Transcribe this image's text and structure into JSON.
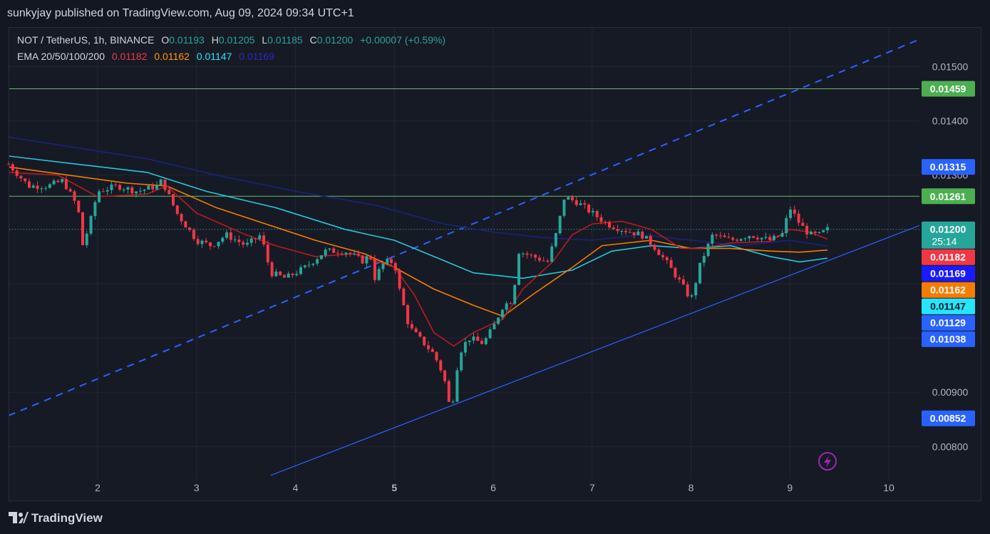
{
  "header": {
    "publisher_line": "sunkyjay published on TradingView.com, Aug 09, 2024 09:34 UTC+1"
  },
  "legend": {
    "symbol": "NOT / TetherUS, 1h, BINANCE",
    "o_label": "O",
    "o_value": "0.01193",
    "h_label": "H",
    "h_value": "0.01205",
    "l_label": "L",
    "l_value": "0.01185",
    "c_label": "C",
    "c_value": "0.01200",
    "change": "+0.00007 (+0.59%)",
    "ema_label": "EMA 20/50/100/200",
    "ema20": "0.01182",
    "ema50": "0.01162",
    "ema100": "0.01147",
    "ema200": "0.01169"
  },
  "footer": {
    "brand": "TradingView"
  },
  "colors": {
    "background": "#161a25",
    "up": "#26a69a",
    "down": "#f23645",
    "ema20": "#b71c1c",
    "ema50": "#f57c00",
    "ema100": "#26c6da",
    "ema200": "#1a237e",
    "hline": "#66bb6a",
    "trendline": "#2962ff",
    "dashed": "#2962ff"
  },
  "chart_data": {
    "type": "candlestick",
    "ylim": [
      0.0074,
      0.0157
    ],
    "xlim": [
      1.1,
      10.45
    ],
    "y_ticks": [
      "0.01500",
      "0.01400",
      "0.01300",
      "0.00900",
      "0.00800"
    ],
    "x_ticks": [
      "2",
      "3",
      "4",
      "5",
      "6",
      "7",
      "8",
      "9",
      "10"
    ],
    "x_tick_values": [
      2,
      3,
      4,
      5,
      6,
      7,
      8,
      9,
      10
    ],
    "horizontal_levels": [
      0.01459,
      0.01261
    ],
    "trendlines": [
      {
        "style": "solid",
        "from": [
          3.75,
          0.00747
        ],
        "to": [
          10.35,
          0.0121
        ]
      },
      {
        "style": "dashed",
        "from": [
          1.1,
          0.00857
        ],
        "to": [
          10.35,
          0.01553
        ]
      }
    ],
    "price_labels": [
      {
        "value": "0.01459",
        "color": "#4caf50",
        "text_color": "#ffffff"
      },
      {
        "value": "0.01315",
        "color": "#2962ff",
        "text_color": "#ffffff"
      },
      {
        "value": "0.01261",
        "color": "#4caf50",
        "text_color": "#ffffff"
      },
      {
        "value": "0.01200",
        "sub": "25:14",
        "color": "#26a69a",
        "text_color": "#ffffff"
      },
      {
        "value": "0.01182",
        "color": "#f23645",
        "text_color": "#ffffff"
      },
      {
        "value": "0.01169",
        "color": "#1a1aff",
        "text_color": "#ffffff"
      },
      {
        "value": "0.01162",
        "color": "#f57c00",
        "text_color": "#ffffff"
      },
      {
        "value": "0.01147",
        "color": "#26e5ff",
        "text_color": "#131722"
      },
      {
        "value": "0.01129",
        "color": "#2962ff",
        "text_color": "#ffffff"
      },
      {
        "value": "0.01038",
        "color": "#2962ff",
        "text_color": "#ffffff"
      },
      {
        "value": "0.00852",
        "color": "#2962ff",
        "text_color": "#ffffff"
      }
    ],
    "close_path": [
      [
        1.1,
        0.0132
      ],
      [
        1.3,
        0.0128
      ],
      [
        1.5,
        0.0128
      ],
      [
        1.65,
        0.0129
      ],
      [
        1.8,
        0.0124
      ],
      [
        1.85,
        0.0117
      ],
      [
        1.92,
        0.0121
      ],
      [
        2.0,
        0.0127
      ],
      [
        2.2,
        0.0128
      ],
      [
        2.4,
        0.0127
      ],
      [
        2.6,
        0.0128
      ],
      [
        2.65,
        0.0129
      ],
      [
        2.8,
        0.0123
      ],
      [
        3.0,
        0.0118
      ],
      [
        3.15,
        0.0117
      ],
      [
        3.3,
        0.0119
      ],
      [
        3.5,
        0.0117
      ],
      [
        3.65,
        0.0119
      ],
      [
        3.75,
        0.0112
      ],
      [
        3.9,
        0.0111
      ],
      [
        4.1,
        0.0113
      ],
      [
        4.3,
        0.0116
      ],
      [
        4.5,
        0.0116
      ],
      [
        4.7,
        0.0114
      ],
      [
        4.75,
        0.0116
      ],
      [
        4.8,
        0.0111
      ],
      [
        4.9,
        0.0114
      ],
      [
        5.0,
        0.0114
      ],
      [
        5.05,
        0.0109
      ],
      [
        5.15,
        0.0102
      ],
      [
        5.3,
        0.0099
      ],
      [
        5.4,
        0.0097
      ],
      [
        5.5,
        0.0093
      ],
      [
        5.55,
        0.0088
      ],
      [
        5.6,
        0.0089
      ],
      [
        5.65,
        0.0097
      ],
      [
        5.75,
        0.01
      ],
      [
        5.9,
        0.0099
      ],
      [
        6.0,
        0.0102
      ],
      [
        6.1,
        0.0106
      ],
      [
        6.2,
        0.0107
      ],
      [
        6.25,
        0.0116
      ],
      [
        6.4,
        0.0115
      ],
      [
        6.55,
        0.0114
      ],
      [
        6.65,
        0.012
      ],
      [
        6.72,
        0.0126
      ],
      [
        6.85,
        0.0125
      ],
      [
        7.0,
        0.0123
      ],
      [
        7.15,
        0.0121
      ],
      [
        7.3,
        0.012
      ],
      [
        7.5,
        0.0119
      ],
      [
        7.62,
        0.0117
      ],
      [
        7.75,
        0.0114
      ],
      [
        7.9,
        0.011
      ],
      [
        8.0,
        0.0107
      ],
      [
        8.1,
        0.0114
      ],
      [
        8.22,
        0.0119
      ],
      [
        8.4,
        0.0118
      ],
      [
        8.6,
        0.0119
      ],
      [
        8.8,
        0.0118
      ],
      [
        8.92,
        0.0119
      ],
      [
        9.0,
        0.0124
      ],
      [
        9.1,
        0.0121
      ],
      [
        9.2,
        0.0119
      ],
      [
        9.3,
        0.0119
      ],
      [
        9.38,
        0.012
      ]
    ],
    "ema_series": [
      {
        "name": "EMA 20",
        "color": "#b71c1c",
        "points": [
          [
            1.1,
            0.01305
          ],
          [
            1.6,
            0.013
          ],
          [
            2.0,
            0.0126
          ],
          [
            2.5,
            0.01265
          ],
          [
            2.7,
            0.0128
          ],
          [
            3.0,
            0.0123
          ],
          [
            3.5,
            0.0119
          ],
          [
            3.8,
            0.0117
          ],
          [
            4.2,
            0.0115
          ],
          [
            4.6,
            0.01155
          ],
          [
            5.0,
            0.0113
          ],
          [
            5.2,
            0.0108
          ],
          [
            5.4,
            0.0101
          ],
          [
            5.6,
            0.00985
          ],
          [
            5.8,
            0.0101
          ],
          [
            6.1,
            0.01035
          ],
          [
            6.3,
            0.0109
          ],
          [
            6.6,
            0.0114
          ],
          [
            6.8,
            0.0119
          ],
          [
            7.0,
            0.0121
          ],
          [
            7.3,
            0.01215
          ],
          [
            7.6,
            0.012
          ],
          [
            7.9,
            0.01165
          ],
          [
            8.1,
            0.01165
          ],
          [
            8.4,
            0.01175
          ],
          [
            8.8,
            0.01178
          ],
          [
            9.0,
            0.012
          ],
          [
            9.2,
            0.01195
          ],
          [
            9.38,
            0.01182
          ]
        ]
      },
      {
        "name": "EMA 50",
        "color": "#f57c00",
        "points": [
          [
            1.1,
            0.01315
          ],
          [
            1.7,
            0.013
          ],
          [
            2.3,
            0.01285
          ],
          [
            2.7,
            0.0128
          ],
          [
            3.2,
            0.0124
          ],
          [
            3.7,
            0.0121
          ],
          [
            4.2,
            0.0118
          ],
          [
            4.7,
            0.01155
          ],
          [
            5.0,
            0.0113
          ],
          [
            5.4,
            0.0109
          ],
          [
            5.8,
            0.0106
          ],
          [
            6.1,
            0.0104
          ],
          [
            6.4,
            0.0108
          ],
          [
            6.8,
            0.0113
          ],
          [
            7.1,
            0.0117
          ],
          [
            7.6,
            0.0118
          ],
          [
            8.0,
            0.01165
          ],
          [
            8.4,
            0.01165
          ],
          [
            8.8,
            0.0116
          ],
          [
            9.1,
            0.01158
          ],
          [
            9.38,
            0.01162
          ]
        ]
      },
      {
        "name": "EMA 100",
        "color": "#26c6da",
        "points": [
          [
            1.1,
            0.01335
          ],
          [
            1.8,
            0.0132
          ],
          [
            2.5,
            0.01305
          ],
          [
            3.1,
            0.0127
          ],
          [
            3.8,
            0.0124
          ],
          [
            4.5,
            0.012
          ],
          [
            5.0,
            0.0118
          ],
          [
            5.4,
            0.0115
          ],
          [
            5.8,
            0.0112
          ],
          [
            6.3,
            0.0111
          ],
          [
            6.8,
            0.01125
          ],
          [
            7.2,
            0.0116
          ],
          [
            7.6,
            0.0117
          ],
          [
            8.0,
            0.01165
          ],
          [
            8.4,
            0.0117
          ],
          [
            8.8,
            0.0115
          ],
          [
            9.1,
            0.0114
          ],
          [
            9.38,
            0.01147
          ]
        ]
      },
      {
        "name": "EMA 200",
        "color": "#1a237e",
        "points": [
          [
            1.1,
            0.0137
          ],
          [
            1.8,
            0.0135
          ],
          [
            2.5,
            0.0133
          ],
          [
            3.2,
            0.013
          ],
          [
            4.0,
            0.0127
          ],
          [
            4.8,
            0.01245
          ],
          [
            5.5,
            0.0121
          ],
          [
            6.0,
            0.01195
          ],
          [
            6.5,
            0.01185
          ],
          [
            7.0,
            0.0118
          ],
          [
            7.5,
            0.0119
          ],
          [
            8.0,
            0.0118
          ],
          [
            8.5,
            0.0117
          ],
          [
            9.0,
            0.0118
          ],
          [
            9.38,
            0.01169
          ]
        ]
      }
    ]
  }
}
